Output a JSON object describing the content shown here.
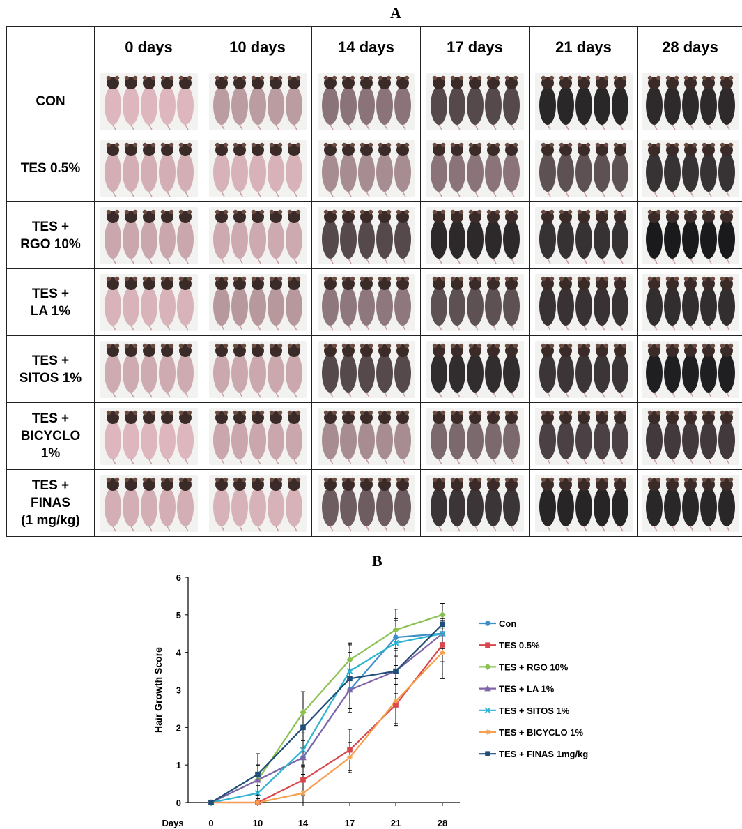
{
  "panel_a": {
    "label": "A",
    "columns": [
      "",
      "0 days",
      "10 days",
      "14 days",
      "17 days",
      "21 days",
      "28 days"
    ],
    "rows": [
      {
        "label": "CON",
        "darkness": [
          0.05,
          0.15,
          0.45,
          0.65,
          0.92,
          0.95
        ]
      },
      {
        "label": "TES 0.5%",
        "darkness": [
          0.05,
          0.08,
          0.25,
          0.45,
          0.6,
          0.85
        ]
      },
      {
        "label": "TES +\nRGO 10%",
        "darkness": [
          0.05,
          0.08,
          0.75,
          0.88,
          0.88,
          0.95
        ]
      },
      {
        "label": "TES +\nLA 1%",
        "darkness": [
          0.05,
          0.15,
          0.4,
          0.7,
          0.82,
          0.9
        ]
      },
      {
        "label": "TES +\nSITOS 1%",
        "darkness": [
          0.05,
          0.12,
          0.65,
          0.88,
          0.88,
          0.95
        ]
      },
      {
        "label": "TES +\nBICYCLO\n1%",
        "darkness": [
          0.05,
          0.08,
          0.3,
          0.45,
          0.75,
          0.85
        ]
      },
      {
        "label": "TES +\nFINAS\n(1 mg/kg)",
        "darkness": [
          0.05,
          0.08,
          0.55,
          0.85,
          0.88,
          0.92
        ]
      }
    ],
    "colors": {
      "pink": "#ddb7bd",
      "dark": "#1a1a1c",
      "head": "#3a2a28",
      "bg": "#f2f2f0"
    }
  },
  "panel_b": {
    "label": "B",
    "chart_data": {
      "type": "line",
      "x": [
        0,
        10,
        14,
        17,
        21,
        28
      ],
      "x_ticks": [
        "0",
        "10",
        "14",
        "17",
        "21",
        "28"
      ],
      "xlabel": "Days",
      "ylabel": "Hair Growth Score",
      "ylim": [
        0,
        6
      ],
      "y_ticks": [
        "0",
        "1",
        "2",
        "3",
        "4",
        "5",
        "6"
      ],
      "grid": false,
      "legend_position": "right",
      "series": [
        {
          "name": "Con",
          "color": "#3d8ec9",
          "marker": "circle",
          "values": [
            0,
            0.6,
            1.2,
            3.0,
            4.4,
            4.5
          ],
          "errors": [
            0,
            0.4,
            0.45,
            0.5,
            0.5,
            0.3
          ]
        },
        {
          "name": "TES 0.5%",
          "color": "#d9464b",
          "marker": "square",
          "values": [
            0,
            0,
            0.6,
            1.4,
            2.6,
            4.2
          ],
          "errors": [
            0,
            0.1,
            0.4,
            0.55,
            0.55,
            0.45
          ]
        },
        {
          "name": "TES + RGO 10%",
          "color": "#8cc152",
          "marker": "diamond",
          "values": [
            0,
            0.6,
            2.4,
            3.8,
            4.6,
            5.0
          ],
          "errors": [
            0,
            0.4,
            0.55,
            0.45,
            0.55,
            0.3
          ]
        },
        {
          "name": "TES + LA 1%",
          "color": "#8064a8",
          "marker": "triangle",
          "values": [
            0,
            0.6,
            1.2,
            3.0,
            3.5,
            4.5
          ],
          "errors": [
            0,
            0.4,
            0.45,
            0.5,
            0.6,
            0.4
          ]
        },
        {
          "name": "TES + SITOS 1%",
          "color": "#2eb3d1",
          "marker": "x",
          "values": [
            0,
            0.25,
            1.4,
            3.5,
            4.25,
            4.5
          ],
          "errors": [
            0,
            0.2,
            0.45,
            0.5,
            0.6,
            0.35
          ]
        },
        {
          "name": "TES + BICYCLO 1%",
          "color": "#f6a04d",
          "marker": "star",
          "values": [
            0,
            0,
            0.25,
            1.2,
            2.7,
            4.0
          ],
          "errors": [
            0,
            0.1,
            0.3,
            0.4,
            0.6,
            0.7
          ]
        },
        {
          "name": "TES + FINAS 1mg/kg",
          "color": "#1f4e79",
          "marker": "square",
          "values": [
            0,
            0.75,
            2.0,
            3.3,
            3.5,
            4.75
          ],
          "errors": [
            0,
            0.55,
            0.95,
            0.9,
            1.4,
            0.55
          ]
        }
      ]
    }
  }
}
